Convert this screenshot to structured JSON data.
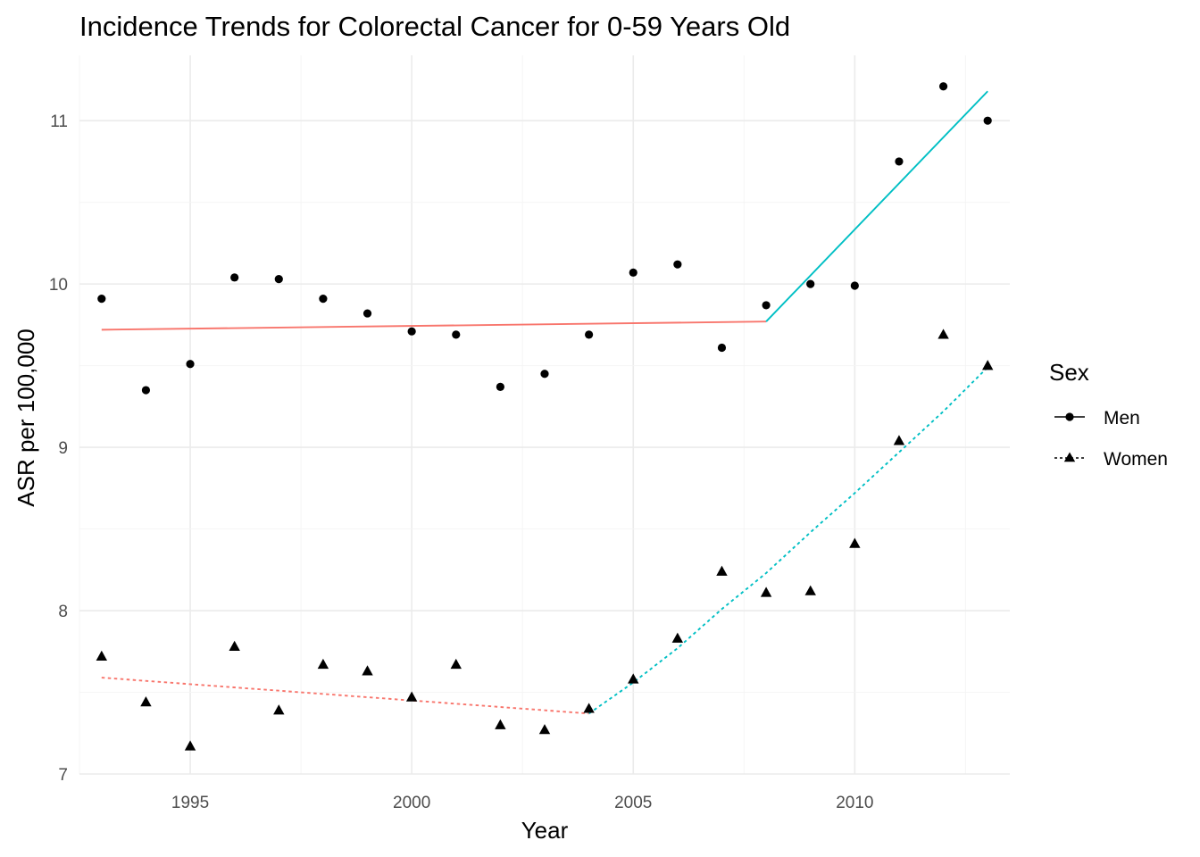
{
  "chart_data": {
    "type": "scatter",
    "title": "Incidence Trends for Colorectal Cancer for 0-59 Years Old",
    "xlabel": "Year",
    "ylabel": "ASR per 100,000",
    "xlim": [
      1992.5,
      2013.5
    ],
    "ylim": [
      7,
      11.4
    ],
    "x_ticks": [
      1995,
      2000,
      2005,
      2010
    ],
    "y_ticks": [
      7,
      8,
      9,
      10,
      11
    ],
    "grid": true,
    "legend": {
      "title": "Sex",
      "placement": "right",
      "entries": [
        {
          "label": "Men",
          "marker": "circle",
          "linetype": "solid"
        },
        {
          "label": "Women",
          "marker": "triangle",
          "linetype": "dashed"
        }
      ]
    },
    "segment_colors": {
      "first": "#f8766d",
      "second": "#00bfc4"
    },
    "series": [
      {
        "name": "Men",
        "marker": "circle",
        "linetype": "solid",
        "x": [
          1993,
          1994,
          1995,
          1996,
          1997,
          1998,
          1999,
          2000,
          2001,
          2002,
          2003,
          2004,
          2005,
          2006,
          2007,
          2008,
          2009,
          2010,
          2011,
          2012,
          2013
        ],
        "y": [
          9.91,
          9.35,
          9.51,
          10.04,
          10.03,
          9.91,
          9.82,
          9.71,
          9.69,
          9.37,
          9.45,
          9.69,
          10.07,
          10.12,
          9.61,
          9.87,
          10.0,
          9.99,
          10.75,
          11.21,
          11.0
        ],
        "trend": [
          {
            "segment": "first",
            "x": [
              1993,
              2008
            ],
            "y": [
              9.72,
              9.77
            ]
          },
          {
            "segment": "second",
            "x": [
              2008,
              2013
            ],
            "y": [
              9.77,
              11.18
            ]
          }
        ]
      },
      {
        "name": "Women",
        "marker": "triangle",
        "linetype": "dashed",
        "x": [
          1993,
          1994,
          1995,
          1996,
          1997,
          1998,
          1999,
          2000,
          2001,
          2002,
          2003,
          2004,
          2005,
          2006,
          2007,
          2008,
          2009,
          2010,
          2011,
          2012,
          2013
        ],
        "y": [
          7.72,
          7.44,
          7.17,
          7.78,
          7.39,
          7.67,
          7.63,
          7.47,
          7.67,
          7.3,
          7.27,
          7.4,
          7.58,
          7.83,
          8.24,
          8.11,
          8.12,
          8.41,
          9.04,
          9.69,
          9.5
        ],
        "trend": [
          {
            "segment": "first",
            "x": [
              1993,
              2004
            ],
            "y": [
              7.59,
              7.37
            ]
          },
          {
            "segment": "second",
            "x": [
              2004,
              2005,
              2006,
              2007,
              2008,
              2009,
              2010,
              2011,
              2012,
              2013
            ],
            "y": [
              7.37,
              7.56,
              7.77,
              8.01,
              8.23,
              8.48,
              8.72,
              8.97,
              9.22,
              9.49
            ]
          }
        ]
      }
    ]
  }
}
